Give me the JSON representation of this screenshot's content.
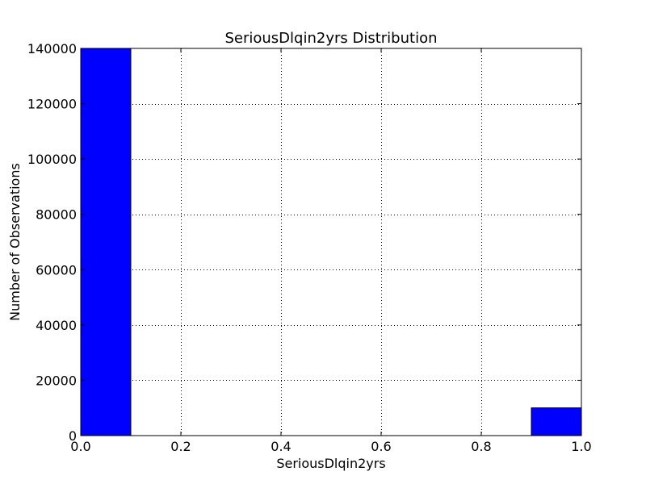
{
  "chart_data": {
    "type": "bar",
    "title": "SeriousDlqin2yrs Distribution",
    "xlabel": "SeriousDlqin2yrs",
    "ylabel": "Number of Observations",
    "xlim": [
      0.0,
      1.0
    ],
    "ylim": [
      0,
      140000
    ],
    "xticks": [
      "0.0",
      "0.2",
      "0.4",
      "0.6",
      "0.8",
      "1.0"
    ],
    "xtick_values": [
      0.0,
      0.2,
      0.4,
      0.6,
      0.8,
      1.0
    ],
    "yticks": [
      "0",
      "20000",
      "40000",
      "60000",
      "80000",
      "100000",
      "120000",
      "140000"
    ],
    "ytick_values": [
      0,
      20000,
      40000,
      60000,
      80000,
      100000,
      120000,
      140000
    ],
    "bins": [
      {
        "start": 0.0,
        "end": 0.1,
        "value": 139974
      },
      {
        "start": 0.1,
        "end": 0.2,
        "value": 0
      },
      {
        "start": 0.2,
        "end": 0.3,
        "value": 0
      },
      {
        "start": 0.3,
        "end": 0.4,
        "value": 0
      },
      {
        "start": 0.4,
        "end": 0.5,
        "value": 0
      },
      {
        "start": 0.5,
        "end": 0.6,
        "value": 0
      },
      {
        "start": 0.6,
        "end": 0.7,
        "value": 0
      },
      {
        "start": 0.7,
        "end": 0.8,
        "value": 0
      },
      {
        "start": 0.8,
        "end": 0.9,
        "value": 0
      },
      {
        "start": 0.9,
        "end": 1.0,
        "value": 10026
      }
    ],
    "grid": true,
    "bar_color": "#0000ff",
    "edge_color": "#000000"
  }
}
